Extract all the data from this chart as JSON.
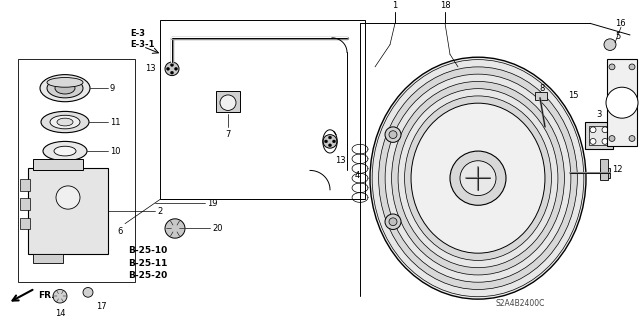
{
  "bg_color": "#ffffff",
  "line_color": "#000000",
  "diagram_code": "S2A4B2400C",
  "bold_labels": [
    "B-25-10",
    "B-25-11",
    "B-25-20"
  ],
  "e3_label": "E-3",
  "e31_label": "E-3-1"
}
